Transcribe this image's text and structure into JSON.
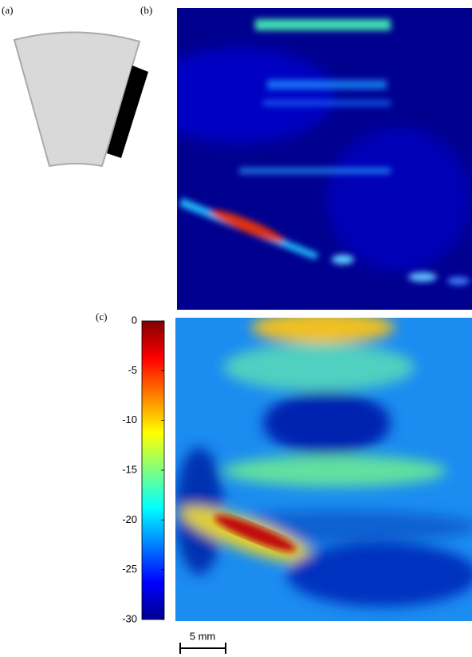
{
  "panels": [
    {
      "label": "(a)"
    },
    {
      "label": "(b)"
    },
    {
      "label": "(c)"
    }
  ],
  "colorbar": {
    "lim": [
      -30,
      0
    ],
    "ticks": [
      0,
      -5,
      -10,
      -15,
      -20,
      -25,
      -30
    ]
  },
  "scale_bar": {
    "label": "5 mm"
  }
}
